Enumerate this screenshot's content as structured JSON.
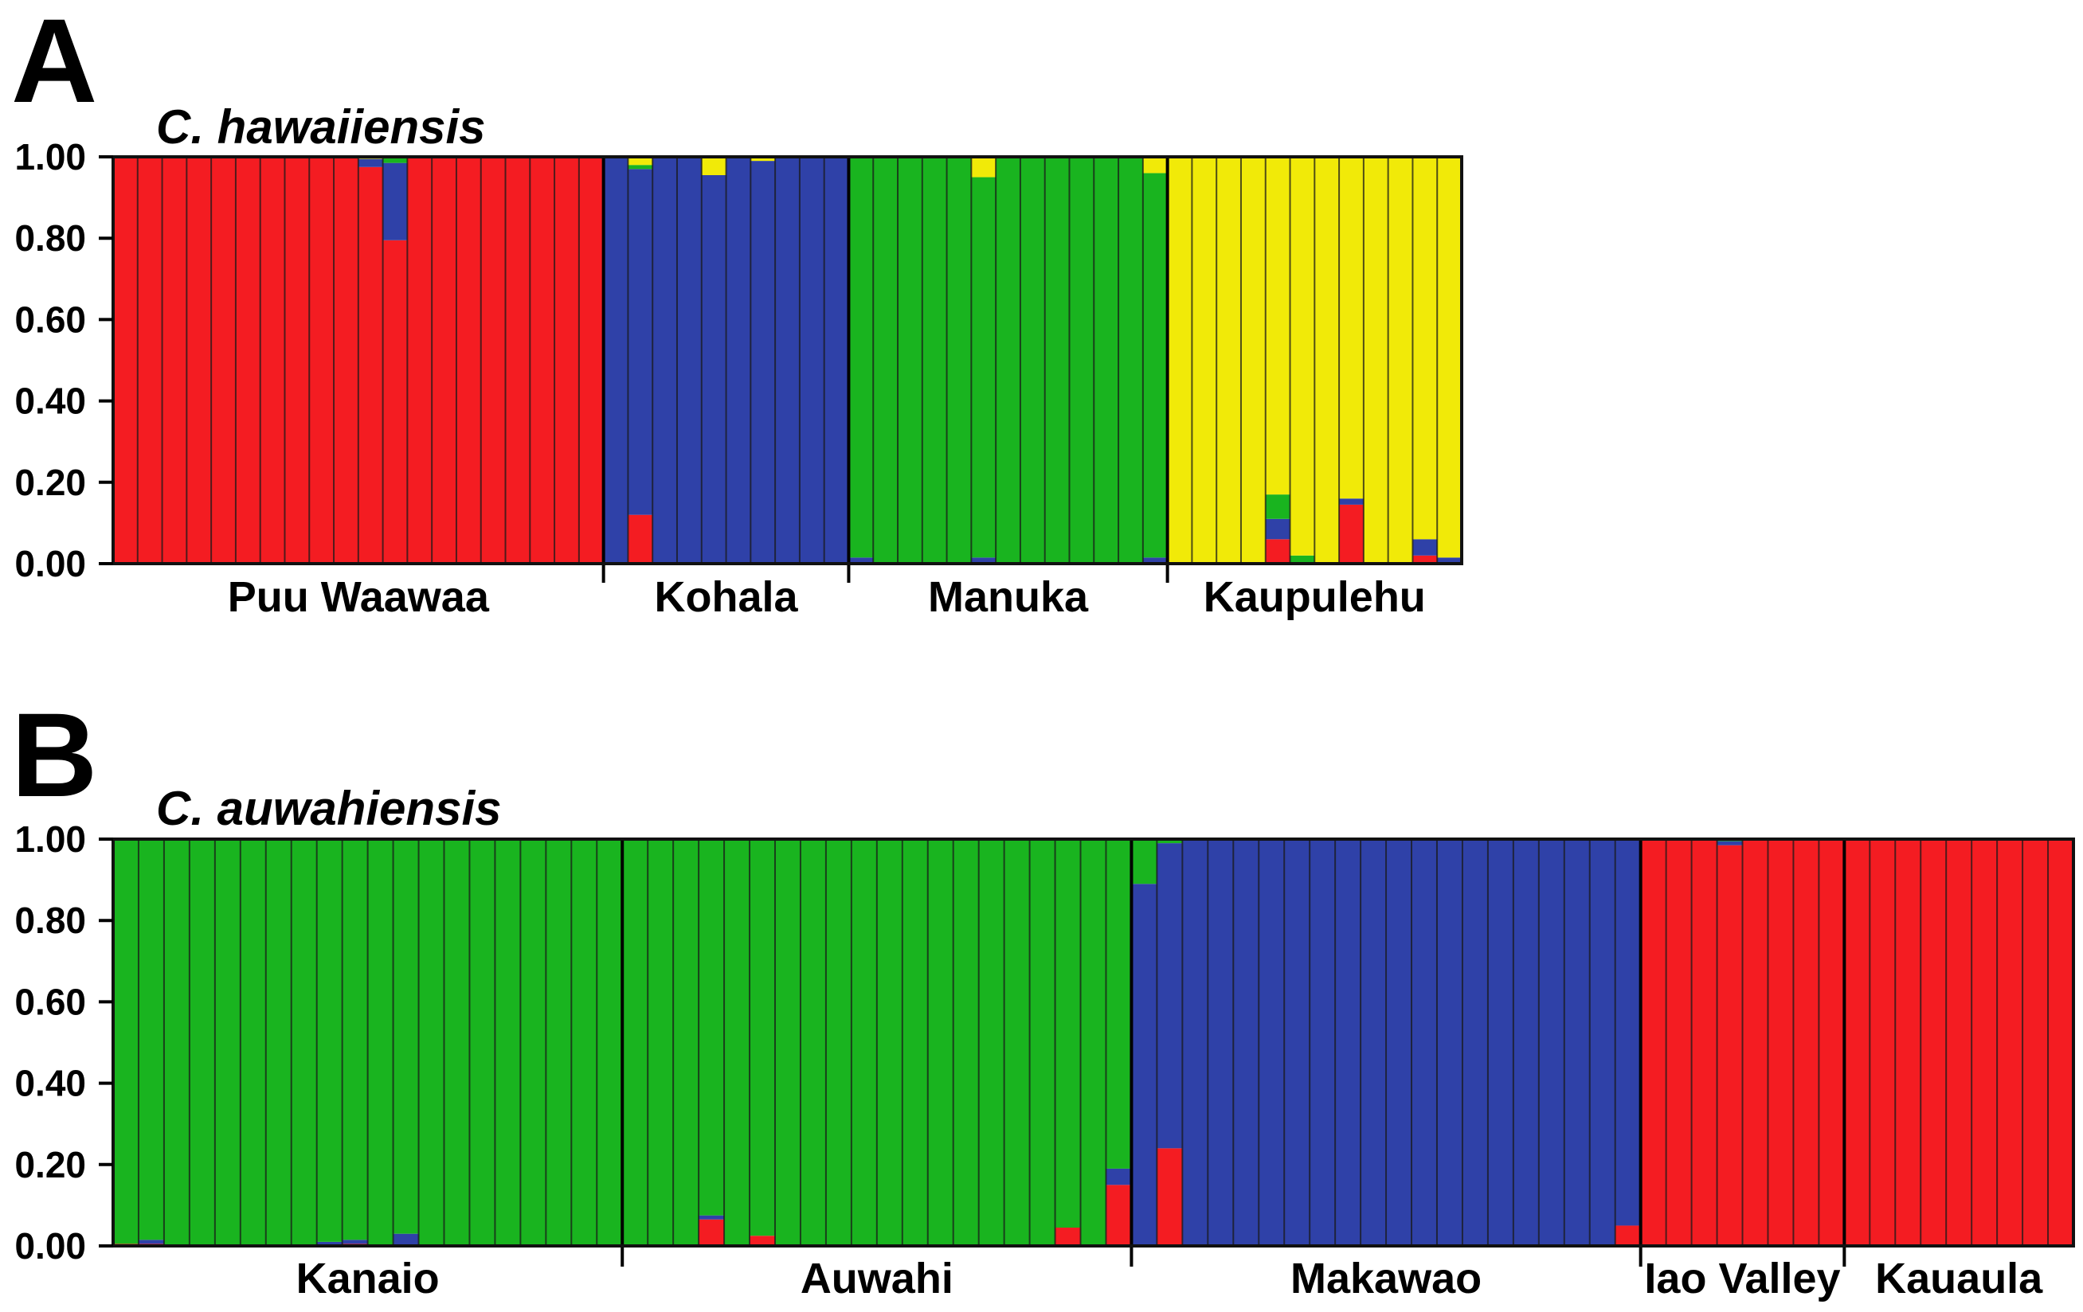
{
  "colors": {
    "red": "#f41c22",
    "blue": "#2f41a8",
    "green": "#19b41f",
    "yellow": "#f1ea08",
    "outline": "#111111"
  },
  "chart_data": [
    {
      "type": "bar",
      "panel": "A",
      "title": "C. hawaiiensis",
      "stacked": true,
      "ylim": [
        0,
        1
      ],
      "yticks": [
        "0.00",
        "0.20",
        "0.40",
        "0.60",
        "0.80",
        "1.00"
      ],
      "grid": false,
      "legend": "none",
      "series_colors": [
        "red",
        "blue",
        "green",
        "yellow"
      ],
      "populations": [
        {
          "name": "Puu Waawaa",
          "individuals": [
            {
              "red": 1
            },
            {
              "red": 1
            },
            {
              "red": 1
            },
            {
              "red": 1
            },
            {
              "red": 1
            },
            {
              "red": 1
            },
            {
              "red": 1
            },
            {
              "red": 1
            },
            {
              "red": 1
            },
            {
              "red": 1
            },
            {
              "red": 0.975,
              "blue": 0.02,
              "yellow": 0.005
            },
            {
              "red": 0.795,
              "blue": 0.19,
              "green": 0.015
            },
            {
              "red": 1
            },
            {
              "red": 1
            },
            {
              "red": 1
            },
            {
              "red": 1
            },
            {
              "red": 1
            },
            {
              "red": 1
            },
            {
              "red": 1
            },
            {
              "red": 1
            }
          ]
        },
        {
          "name": "Kohala",
          "individuals": [
            {
              "blue": 1
            },
            {
              "blue": 0.85,
              "red": 0.12,
              "green": 0.01,
              "yellow": 0.02
            },
            {
              "blue": 1
            },
            {
              "blue": 1
            },
            {
              "blue": 0.955,
              "yellow": 0.045
            },
            {
              "blue": 1
            },
            {
              "blue": 0.99,
              "yellow": 0.01
            },
            {
              "blue": 1
            },
            {
              "blue": 1
            },
            {
              "blue": 1
            }
          ]
        },
        {
          "name": "Manuka",
          "individuals": [
            {
              "green": 0.985,
              "blue": 0.015
            },
            {
              "green": 1
            },
            {
              "green": 1
            },
            {
              "green": 1
            },
            {
              "green": 1
            },
            {
              "green": 0.935,
              "yellow": 0.05,
              "blue": 0.015
            },
            {
              "green": 1
            },
            {
              "green": 1
            },
            {
              "green": 1
            },
            {
              "green": 1
            },
            {
              "green": 1
            },
            {
              "green": 1
            },
            {
              "green": 0.945,
              "yellow": 0.04,
              "blue": 0.015
            }
          ]
        },
        {
          "name": "Kaupulehu",
          "individuals": [
            {
              "yellow": 1
            },
            {
              "yellow": 1
            },
            {
              "yellow": 1
            },
            {
              "yellow": 1
            },
            {
              "yellow": 0.83,
              "blue": 0.05,
              "green": 0.06,
              "red": 0.06
            },
            {
              "yellow": 0.98,
              "green": 0.02
            },
            {
              "yellow": 1
            },
            {
              "yellow": 0.84,
              "blue": 0.015,
              "red": 0.145
            },
            {
              "yellow": 1
            },
            {
              "yellow": 1
            },
            {
              "yellow": 0.94,
              "blue": 0.04,
              "red": 0.02
            },
            {
              "yellow": 0.985,
              "blue": 0.015
            }
          ]
        }
      ]
    },
    {
      "type": "bar",
      "panel": "B",
      "title": "C. auwahiensis",
      "stacked": true,
      "ylim": [
        0,
        1
      ],
      "yticks": [
        "0.00",
        "0.20",
        "0.40",
        "0.60",
        "0.80",
        "1.00"
      ],
      "grid": false,
      "legend": "none",
      "series_colors": [
        "red",
        "blue",
        "green",
        "yellow"
      ],
      "populations": [
        {
          "name": "Kanaio",
          "individuals": [
            {
              "green": 0.995,
              "red": 0.005
            },
            {
              "green": 0.985,
              "blue": 0.01,
              "red": 0.005
            },
            {
              "green": 1
            },
            {
              "green": 1
            },
            {
              "green": 1
            },
            {
              "green": 1
            },
            {
              "green": 1
            },
            {
              "green": 1
            },
            {
              "green": 0.99,
              "blue": 0.01
            },
            {
              "green": 0.985,
              "blue": 0.01,
              "red": 0.005
            },
            {
              "green": 1
            },
            {
              "green": 0.97,
              "blue": 0.03
            },
            {
              "green": 1
            },
            {
              "green": 1
            },
            {
              "green": 1
            },
            {
              "green": 1
            },
            {
              "green": 1
            },
            {
              "green": 1
            },
            {
              "green": 1
            },
            {
              "green": 1
            }
          ]
        },
        {
          "name": "Auwahi",
          "individuals": [
            {
              "green": 1
            },
            {
              "green": 1
            },
            {
              "green": 1
            },
            {
              "green": 0.925,
              "blue": 0.01,
              "red": 0.065
            },
            {
              "green": 1
            },
            {
              "green": 0.975,
              "red": 0.025
            },
            {
              "green": 1
            },
            {
              "green": 1
            },
            {
              "green": 1
            },
            {
              "green": 1
            },
            {
              "green": 1
            },
            {
              "green": 1
            },
            {
              "green": 1
            },
            {
              "green": 1
            },
            {
              "green": 1
            },
            {
              "green": 1
            },
            {
              "green": 1
            },
            {
              "green": 0.955,
              "red": 0.045
            },
            {
              "green": 1
            },
            {
              "green": 0.81,
              "blue": 0.04,
              "red": 0.15
            }
          ]
        },
        {
          "name": "Makawao",
          "individuals": [
            {
              "blue": 0.89,
              "green": 0.11
            },
            {
              "blue": 0.75,
              "green": 0.01,
              "red": 0.24
            },
            {
              "blue": 1
            },
            {
              "blue": 1
            },
            {
              "blue": 1
            },
            {
              "blue": 1
            },
            {
              "blue": 1
            },
            {
              "blue": 1
            },
            {
              "blue": 1
            },
            {
              "blue": 1
            },
            {
              "blue": 1
            },
            {
              "blue": 1
            },
            {
              "blue": 1
            },
            {
              "blue": 1
            },
            {
              "blue": 1
            },
            {
              "blue": 1
            },
            {
              "blue": 1
            },
            {
              "blue": 1
            },
            {
              "blue": 1
            },
            {
              "blue": 0.95,
              "red": 0.05
            }
          ]
        },
        {
          "name": "Iao Valley",
          "individuals": [
            {
              "red": 1
            },
            {
              "red": 1
            },
            {
              "red": 1
            },
            {
              "red": 0.985,
              "blue": 0.01,
              "green": 0.005
            },
            {
              "red": 1
            },
            {
              "red": 1
            },
            {
              "red": 1
            },
            {
              "red": 1
            }
          ]
        },
        {
          "name": "Kauaula",
          "individuals": [
            {
              "red": 1
            },
            {
              "red": 1
            },
            {
              "red": 1
            },
            {
              "red": 1
            },
            {
              "red": 1
            },
            {
              "red": 1
            },
            {
              "red": 1
            },
            {
              "red": 1
            },
            {
              "red": 1
            }
          ]
        }
      ]
    }
  ]
}
